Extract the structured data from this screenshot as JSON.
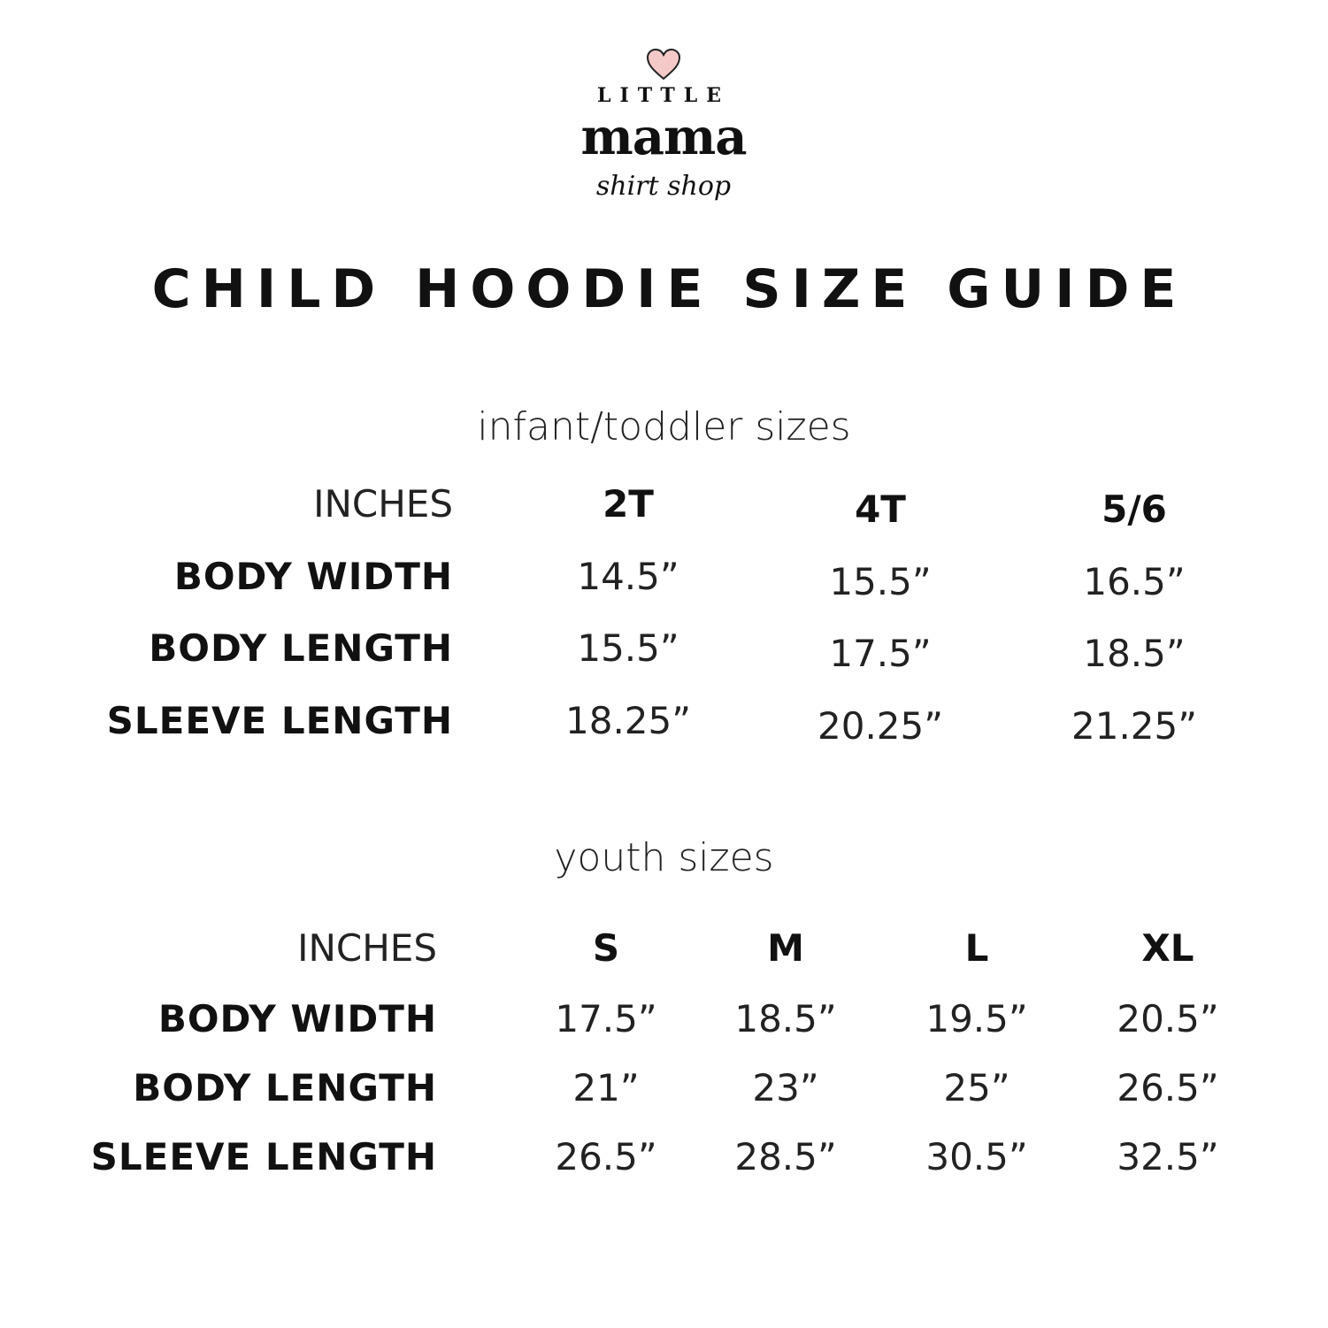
{
  "logo": {
    "top": "LITTLE",
    "main": "mama",
    "script": "shirt shop",
    "heart_color": "#f6c9c9"
  },
  "title": "CHILD HOODIE SIZE GUIDE",
  "tables": [
    {
      "subtitle": "infant/toddler sizes",
      "unit_label": "INCHES",
      "sizes": [
        "2T",
        "4T",
        "5/6"
      ],
      "rows": [
        {
          "label": "BODY WIDTH",
          "values": [
            "14.5”",
            "15.5”",
            "16.5”"
          ]
        },
        {
          "label": "BODY LENGTH",
          "values": [
            "15.5”",
            "17.5”",
            "18.5”"
          ]
        },
        {
          "label": "SLEEVE LENGTH",
          "values": [
            "18.25”",
            "20.25”",
            "21.25”"
          ]
        }
      ]
    },
    {
      "subtitle": "youth sizes",
      "unit_label": "INCHES",
      "sizes": [
        "S",
        "M",
        "L",
        "XL"
      ],
      "rows": [
        {
          "label": "BODY WIDTH",
          "values": [
            "17.5”",
            "18.5”",
            "19.5”",
            "20.5”"
          ]
        },
        {
          "label": "BODY LENGTH",
          "values": [
            "21”",
            "23”",
            "25”",
            "26.5”"
          ]
        },
        {
          "label": "SLEEVE LENGTH",
          "values": [
            "26.5”",
            "28.5”",
            "30.5”",
            "32.5”"
          ]
        }
      ]
    }
  ]
}
